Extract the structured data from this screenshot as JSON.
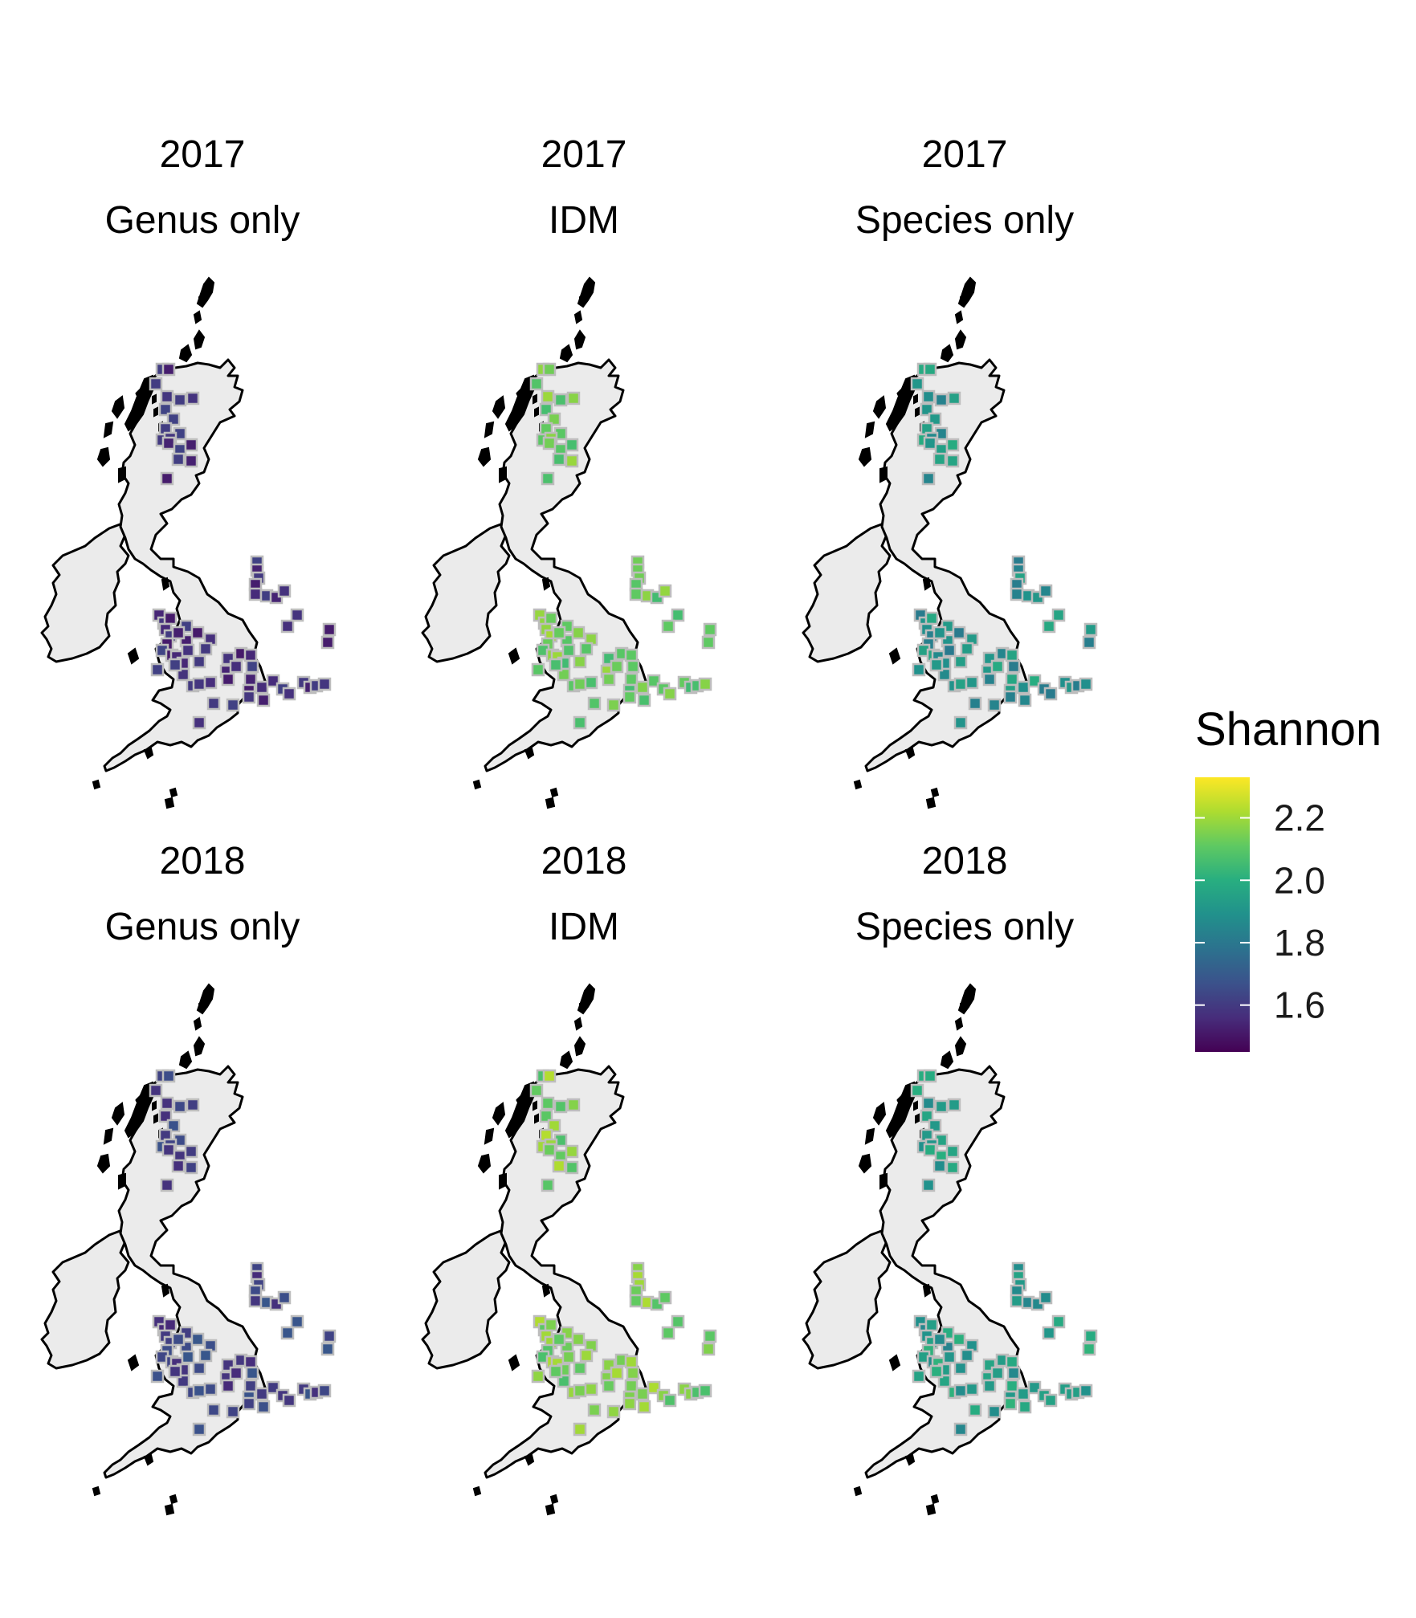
{
  "chart_data": {
    "type": "map",
    "layout": "2 rows x 3 columns of faceted maps of Great Britain and Ireland",
    "marker": "square grid cells coloured by Shannon diversity (viridis)",
    "legend": {
      "title": "Shannon",
      "placement": "right",
      "palette": [
        "#440154",
        "#472d7b",
        "#3b528b",
        "#2c728e",
        "#21918c",
        "#28ae80",
        "#5ec962",
        "#addc30",
        "#fde725"
      ],
      "range": [
        1.45,
        2.33
      ],
      "ticks": [
        2.2,
        2.0,
        1.8,
        1.6
      ],
      "tick_labels": [
        "2.2",
        "2.0",
        "1.8",
        "1.6"
      ]
    },
    "panels": [
      {
        "year": "2017",
        "model": "Genus only",
        "mean_shannon": 1.57,
        "spread": 0.06
      },
      {
        "year": "2017",
        "model": "IDM",
        "mean_shannon": 2.13,
        "spread": 0.08
      },
      {
        "year": "2017",
        "model": "Species only",
        "mean_shannon": 1.9,
        "spread": 0.1
      },
      {
        "year": "2018",
        "model": "Genus only",
        "mean_shannon": 1.62,
        "spread": 0.07
      },
      {
        "year": "2018",
        "model": "IDM",
        "mean_shannon": 2.15,
        "spread": 0.08
      },
      {
        "year": "2018",
        "model": "Species only",
        "mean_shannon": 1.93,
        "spread": 0.09
      }
    ],
    "colors": {
      "land": "#ebebeb",
      "coast": "#000000",
      "cell_border": "#bdbdbd"
    }
  }
}
